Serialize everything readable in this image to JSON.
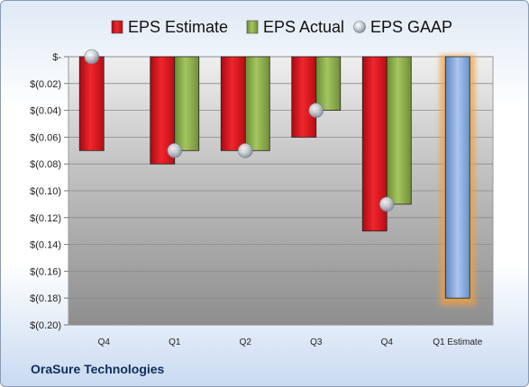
{
  "company": "OraSure Technologies",
  "chart_data": {
    "type": "bar",
    "categories": [
      "Q4",
      "Q1",
      "Q2",
      "Q3",
      "Q4",
      "Q1 Estimate"
    ],
    "series": [
      {
        "name": "EPS Estimate",
        "color": "#e0161c",
        "values": [
          -0.07,
          -0.08,
          -0.07,
          -0.06,
          -0.13,
          null
        ]
      },
      {
        "name": "EPS Actual",
        "color": "#8db04a",
        "values": [
          null,
          -0.07,
          -0.07,
          -0.04,
          -0.11,
          null
        ]
      },
      {
        "name": "EPS GAAP",
        "color": "#b9c3cf",
        "marker": "circle",
        "values": [
          0.0,
          -0.07,
          -0.07,
          -0.04,
          -0.11,
          null
        ]
      }
    ],
    "projection": {
      "category": "Q1 Estimate",
      "value": -0.18,
      "color": "#7ea5d8",
      "glow": "#f0a040"
    },
    "yticks": [
      0,
      -0.02,
      -0.04,
      -0.06,
      -0.08,
      -0.1,
      -0.12,
      -0.14,
      -0.16,
      -0.18,
      -0.2
    ],
    "ytick_labels": [
      "$-",
      "$(0.02)",
      "$(0.04)",
      "$(0.06)",
      "$(0.08)",
      "$(0.10)",
      "$(0.12)",
      "$(0.14)",
      "$(0.16)",
      "$(0.18)",
      "$(0.20)"
    ],
    "ylim": [
      -0.2,
      0
    ],
    "legend_position": "top",
    "grid": true
  }
}
